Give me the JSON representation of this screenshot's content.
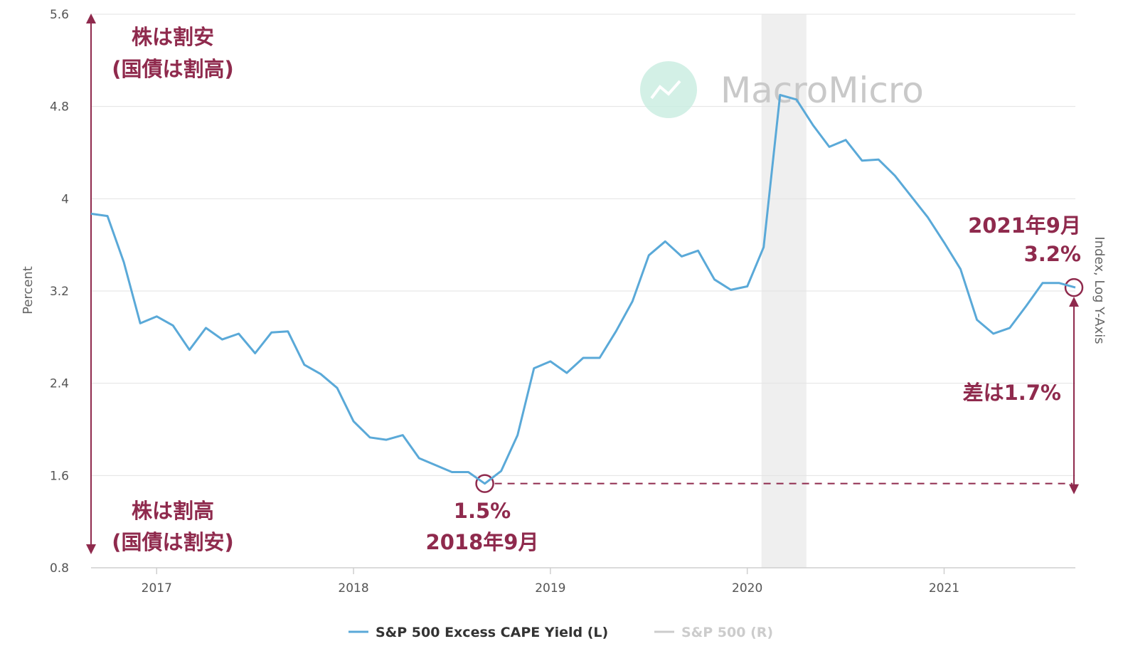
{
  "chart_data": {
    "type": "line",
    "ylabel": "Percent",
    "y2label": "Index, Log Y-Axis",
    "ylim": [
      0.8,
      5.6
    ],
    "yticks": [
      "0.8",
      "1.6",
      "2.4",
      "3.2",
      "4",
      "4.8",
      "5.6"
    ],
    "xticks": [
      "2017",
      "2018",
      "2019",
      "2020",
      "2021"
    ],
    "xlim": [
      "2016-09",
      "2021-09"
    ],
    "grid": true,
    "legend_position": "bottom",
    "recession_band": [
      "2020-02",
      "2020-04"
    ],
    "series": [
      {
        "name": "S&P 500 Excess CAPE Yield (L)",
        "color": "#5aa9d8",
        "x": [
          "2016-09",
          "2016-10",
          "2016-11",
          "2016-12",
          "2017-01",
          "2017-02",
          "2017-03",
          "2017-04",
          "2017-05",
          "2017-06",
          "2017-07",
          "2017-08",
          "2017-09",
          "2017-10",
          "2017-11",
          "2017-12",
          "2018-01",
          "2018-02",
          "2018-03",
          "2018-04",
          "2018-05",
          "2018-06",
          "2018-07",
          "2018-08",
          "2018-09",
          "2018-10",
          "2018-11",
          "2018-12",
          "2019-01",
          "2019-02",
          "2019-03",
          "2019-04",
          "2019-05",
          "2019-06",
          "2019-07",
          "2019-08",
          "2019-09",
          "2019-10",
          "2019-11",
          "2019-12",
          "2020-01",
          "2020-02",
          "2020-03",
          "2020-04",
          "2020-05",
          "2020-06",
          "2020-07",
          "2020-08",
          "2020-09",
          "2020-10",
          "2020-11",
          "2020-12",
          "2021-01",
          "2021-02",
          "2021-03",
          "2021-04",
          "2021-05",
          "2021-06",
          "2021-07",
          "2021-08",
          "2021-09"
        ],
        "values": [
          3.87,
          3.85,
          3.45,
          2.92,
          2.98,
          2.9,
          2.69,
          2.88,
          2.78,
          2.83,
          2.66,
          2.84,
          2.85,
          2.56,
          2.48,
          2.36,
          2.07,
          1.93,
          1.91,
          1.95,
          1.75,
          1.69,
          1.63,
          1.63,
          1.53,
          1.64,
          1.95,
          2.53,
          2.59,
          2.49,
          2.62,
          2.62,
          2.85,
          3.11,
          3.51,
          3.63,
          3.5,
          3.55,
          3.3,
          3.21,
          3.24,
          3.58,
          4.9,
          4.86,
          4.64,
          4.45,
          4.51,
          4.33,
          4.34,
          4.2,
          4.02,
          3.84,
          3.62,
          3.39,
          2.95,
          2.83,
          2.88,
          3.07,
          3.27,
          3.27,
          3.23
        ]
      },
      {
        "name": "S&P 500 (R)",
        "color": "#cccccc",
        "values": []
      }
    ],
    "annotations": {
      "top_left": [
        "株は割安",
        "(国債は割高)"
      ],
      "bottom_left": [
        "株は割高",
        "(国債は割安)"
      ],
      "low_point": [
        "1.5%",
        "2018年9月"
      ],
      "latest_point": [
        "2021年9月",
        "3.2%"
      ],
      "difference": "差は1.7%",
      "low_value": 1.53,
      "low_date": "2018-09",
      "latest_value": 3.23,
      "latest_date": "2021-09"
    },
    "accent_color": "#8f2a4d"
  },
  "watermark": {
    "text": "MacroMicro",
    "logo": "chart-trend-logo-icon"
  }
}
